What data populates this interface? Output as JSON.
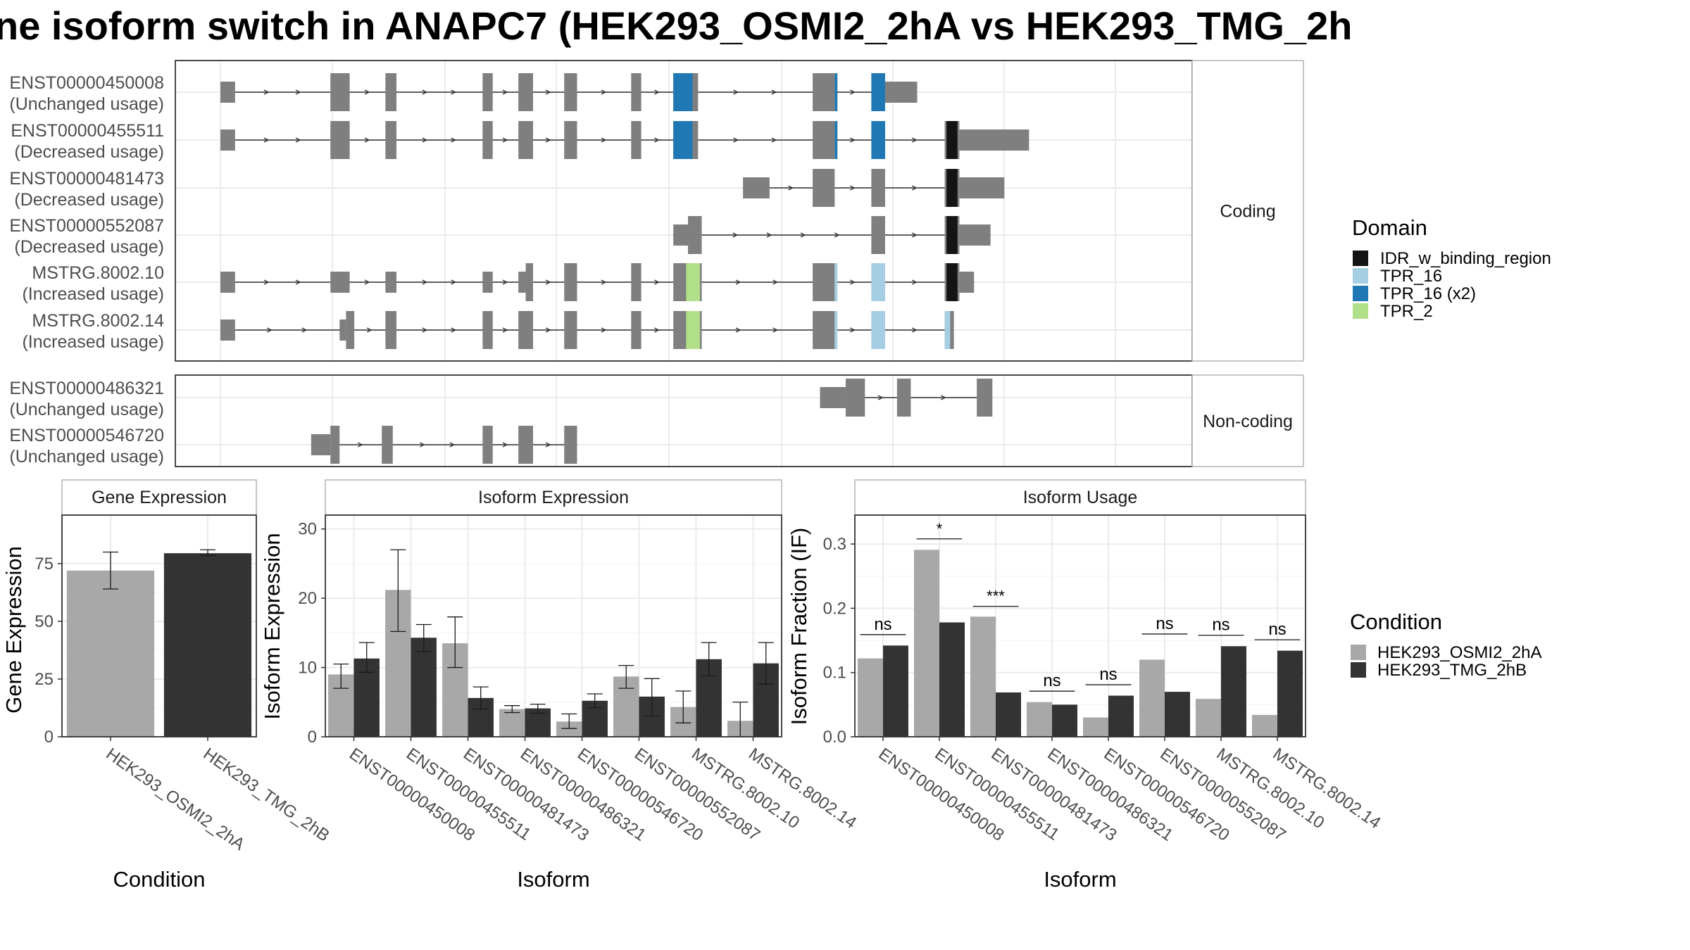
{
  "title": "ne isoform switch in ANAPC7 (HEK293_OSMI2_2hA vs HEK293_TMG_2h",
  "colors": {
    "exon": "#7f7f7f",
    "IDR_w_binding_region": "#141414",
    "TPR_16": "#a6cee3",
    "TPR_16_x2": "#1f78b4",
    "TPR_2": "#b2df8a",
    "cond_a": "#a8a8a8",
    "cond_b": "#333333",
    "grid": "#ebebeb",
    "panel_border": "#333333",
    "strip_border": "#b3b3b3"
  },
  "structure": {
    "coding_label": "Coding",
    "noncoding_label": "Non-coding",
    "x_domain": [
      0,
      1000
    ],
    "coding": [
      {
        "id": "ENST00000450008",
        "status": "(Unchanged usage)",
        "exons": [
          [
            0,
            16,
            "u"
          ],
          [
            120,
            141,
            "c"
          ],
          [
            180,
            192,
            "c"
          ],
          [
            286,
            297,
            "c"
          ],
          [
            325,
            341,
            "c"
          ],
          [
            375,
            389,
            "c"
          ],
          [
            448,
            459,
            "c"
          ],
          [
            494,
            515,
            "c"
          ],
          [
            515,
            521,
            "c"
          ],
          [
            646,
            670,
            "c"
          ],
          [
            710,
            725,
            "c"
          ],
          [
            725,
            760,
            "u"
          ]
        ],
        "domains": [
          [
            494,
            515,
            "TPR_16_x2"
          ],
          [
            670,
            673,
            "TPR_16_x2"
          ],
          [
            710,
            725,
            "TPR_16_x2"
          ]
        ]
      },
      {
        "id": "ENST00000455511",
        "status": "(Decreased usage)",
        "exons": [
          [
            0,
            16,
            "u"
          ],
          [
            120,
            141,
            "c"
          ],
          [
            180,
            192,
            "c"
          ],
          [
            286,
            297,
            "c"
          ],
          [
            325,
            341,
            "c"
          ],
          [
            375,
            389,
            "c"
          ],
          [
            448,
            459,
            "c"
          ],
          [
            494,
            515,
            "c"
          ],
          [
            515,
            521,
            "c"
          ],
          [
            646,
            670,
            "c"
          ],
          [
            710,
            725,
            "c"
          ],
          [
            790,
            806,
            "c"
          ],
          [
            806,
            882,
            "u"
          ]
        ],
        "domains": [
          [
            494,
            515,
            "TPR_16_x2"
          ],
          [
            670,
            673,
            "TPR_16_x2"
          ],
          [
            710,
            725,
            "TPR_16_x2"
          ],
          [
            792,
            804,
            "IDR_w_binding_region"
          ]
        ]
      },
      {
        "id": "ENST00000481473",
        "status": "(Decreased usage)",
        "exons": [
          [
            570,
            599,
            "u"
          ],
          [
            646,
            670,
            "c"
          ],
          [
            710,
            725,
            "c"
          ],
          [
            790,
            806,
            "c"
          ],
          [
            806,
            855,
            "u"
          ]
        ],
        "domains": [
          [
            792,
            804,
            "IDR_w_binding_region"
          ]
        ]
      },
      {
        "id": "ENST00000552087",
        "status": "(Decreased usage)",
        "exons": [
          [
            494,
            510,
            "u"
          ],
          [
            510,
            525,
            "c"
          ],
          [
            710,
            725,
            "c"
          ],
          [
            790,
            806,
            "c"
          ],
          [
            806,
            840,
            "u"
          ]
        ],
        "domains": [
          [
            792,
            804,
            "IDR_w_binding_region"
          ]
        ]
      },
      {
        "id": "MSTRG.8002.10",
        "status": "(Increased usage)",
        "exons": [
          [
            0,
            16,
            "u"
          ],
          [
            120,
            141,
            "u"
          ],
          [
            180,
            192,
            "u"
          ],
          [
            286,
            297,
            "u"
          ],
          [
            325,
            333,
            "u"
          ],
          [
            333,
            341,
            "c"
          ],
          [
            375,
            389,
            "c"
          ],
          [
            448,
            459,
            "c"
          ],
          [
            494,
            525,
            "c"
          ],
          [
            646,
            670,
            "c"
          ],
          [
            710,
            725,
            "c"
          ],
          [
            790,
            806,
            "c"
          ],
          [
            806,
            822,
            "u"
          ]
        ],
        "domains": [
          [
            508,
            523,
            "TPR_2"
          ],
          [
            670,
            673,
            "TPR_16"
          ],
          [
            710,
            725,
            "TPR_16"
          ],
          [
            792,
            804,
            "IDR_w_binding_region"
          ]
        ]
      },
      {
        "id": "MSTRG.8002.14",
        "status": "(Increased usage)",
        "exons": [
          [
            0,
            16,
            "u"
          ],
          [
            130,
            137,
            "u"
          ],
          [
            137,
            146,
            "c"
          ],
          [
            180,
            192,
            "c"
          ],
          [
            286,
            297,
            "c"
          ],
          [
            325,
            341,
            "c"
          ],
          [
            375,
            389,
            "c"
          ],
          [
            448,
            459,
            "c"
          ],
          [
            494,
            525,
            "c"
          ],
          [
            646,
            670,
            "c"
          ],
          [
            710,
            725,
            "c"
          ],
          [
            790,
            800,
            "c"
          ]
        ],
        "domains": [
          [
            508,
            523,
            "TPR_2"
          ],
          [
            670,
            673,
            "TPR_16"
          ],
          [
            710,
            725,
            "TPR_16"
          ],
          [
            790,
            796,
            "TPR_16"
          ]
        ]
      }
    ],
    "noncoding": [
      {
        "id": "ENST00000486321",
        "status": "(Unchanged usage)",
        "exons": [
          [
            654,
            682,
            "u"
          ],
          [
            682,
            703,
            "c"
          ],
          [
            738,
            753,
            "c"
          ],
          [
            825,
            842,
            "c"
          ]
        ],
        "domains": []
      },
      {
        "id": "ENST00000546720",
        "status": "(Unchanged usage)",
        "exons": [
          [
            99,
            120,
            "u"
          ],
          [
            120,
            130,
            "c"
          ],
          [
            176,
            188,
            "c"
          ],
          [
            286,
            297,
            "c"
          ],
          [
            325,
            341,
            "c"
          ],
          [
            375,
            389,
            "c"
          ]
        ],
        "domains": []
      }
    ]
  },
  "legend_domain": {
    "title": "Domain",
    "items": [
      {
        "key": "IDR_w_binding_region",
        "label": "IDR_w_binding_region"
      },
      {
        "key": "TPR_16",
        "label": "TPR_16"
      },
      {
        "key": "TPR_16_x2",
        "label": "TPR_16 (x2)"
      },
      {
        "key": "TPR_2",
        "label": "TPR_2"
      }
    ]
  },
  "legend_condition": {
    "title": "Condition",
    "items": [
      {
        "key": "cond_a",
        "label": "HEK293_OSMI2_2hA"
      },
      {
        "key": "cond_b",
        "label": "HEK293_TMG_2hB"
      }
    ]
  },
  "chart_data": [
    {
      "type": "bar",
      "title": "Gene Expression",
      "xlabel": "Condition",
      "ylabel": "Gene Expression",
      "ylim": [
        0,
        96
      ],
      "yticks": [
        0,
        25,
        50,
        75
      ],
      "categories": [
        "HEK293_OSMI2_2hA",
        "HEK293_TMG_2hB"
      ],
      "values": [
        72,
        79.5
      ],
      "err_low": [
        64,
        78.5
      ],
      "err_high": [
        80,
        81
      ]
    },
    {
      "type": "bar",
      "title": "Isoform Expression",
      "xlabel": "Isoform",
      "ylabel": "Isoform Expression",
      "ylim": [
        0,
        32
      ],
      "yticks": [
        0,
        10,
        20,
        30
      ],
      "categories": [
        "ENST00000450008",
        "ENST00000455511",
        "ENST00000481473",
        "ENST00000486321",
        "ENST00000546720",
        "ENST00000552087",
        "MSTRG.8002.10",
        "MSTRG.8002.14"
      ],
      "series": [
        {
          "name": "HEK293_OSMI2_2hA",
          "color_key": "cond_a",
          "values": [
            9,
            21.2,
            13.5,
            4,
            2.2,
            8.7,
            4.3,
            2.3
          ],
          "err_low": [
            7,
            15.2,
            10,
            3.5,
            1.2,
            7,
            2,
            0
          ],
          "err_high": [
            10.5,
            27,
            17.3,
            4.5,
            3.3,
            10.3,
            6.6,
            5
          ]
        },
        {
          "name": "HEK293_TMG_2hB",
          "color_key": "cond_b",
          "values": [
            11.3,
            14.3,
            5.6,
            4.1,
            5.2,
            5.8,
            11.2,
            10.6
          ],
          "err_low": [
            9.3,
            12.3,
            4,
            3.4,
            4.2,
            3,
            8.8,
            7.6
          ],
          "err_high": [
            13.6,
            16.2,
            7.2,
            4.7,
            6.2,
            8.4,
            13.6,
            13.6
          ]
        }
      ]
    },
    {
      "type": "bar",
      "title": "Isoform Usage",
      "xlabel": "Isoform",
      "ylabel": "Isoform Fraction (IF)",
      "ylim": [
        0,
        0.345
      ],
      "yticks": [
        0,
        0.1,
        0.2,
        0.3
      ],
      "ytick_labels": [
        "0.0",
        "0.1",
        "0.2",
        "0.3"
      ],
      "categories": [
        "ENST00000450008",
        "ENST00000455511",
        "ENST00000481473",
        "ENST00000486321",
        "ENST00000546720",
        "ENST00000552087",
        "MSTRG.8002.10",
        "MSTRG.8002.14"
      ],
      "series": [
        {
          "name": "HEK293_OSMI2_2hA",
          "color_key": "cond_a",
          "values": [
            0.122,
            0.291,
            0.187,
            0.054,
            0.03,
            0.12,
            0.059,
            0.034
          ]
        },
        {
          "name": "HEK293_TMG_2hB",
          "color_key": "cond_b",
          "values": [
            0.142,
            0.178,
            0.069,
            0.05,
            0.064,
            0.07,
            0.141,
            0.134
          ]
        }
      ],
      "significance": [
        "ns",
        "*",
        "***",
        "ns",
        "ns",
        "ns",
        "ns",
        "ns"
      ],
      "sig_y": [
        0.159,
        0.308,
        0.203,
        0.071,
        0.081,
        0.16,
        0.158,
        0.151
      ]
    }
  ]
}
